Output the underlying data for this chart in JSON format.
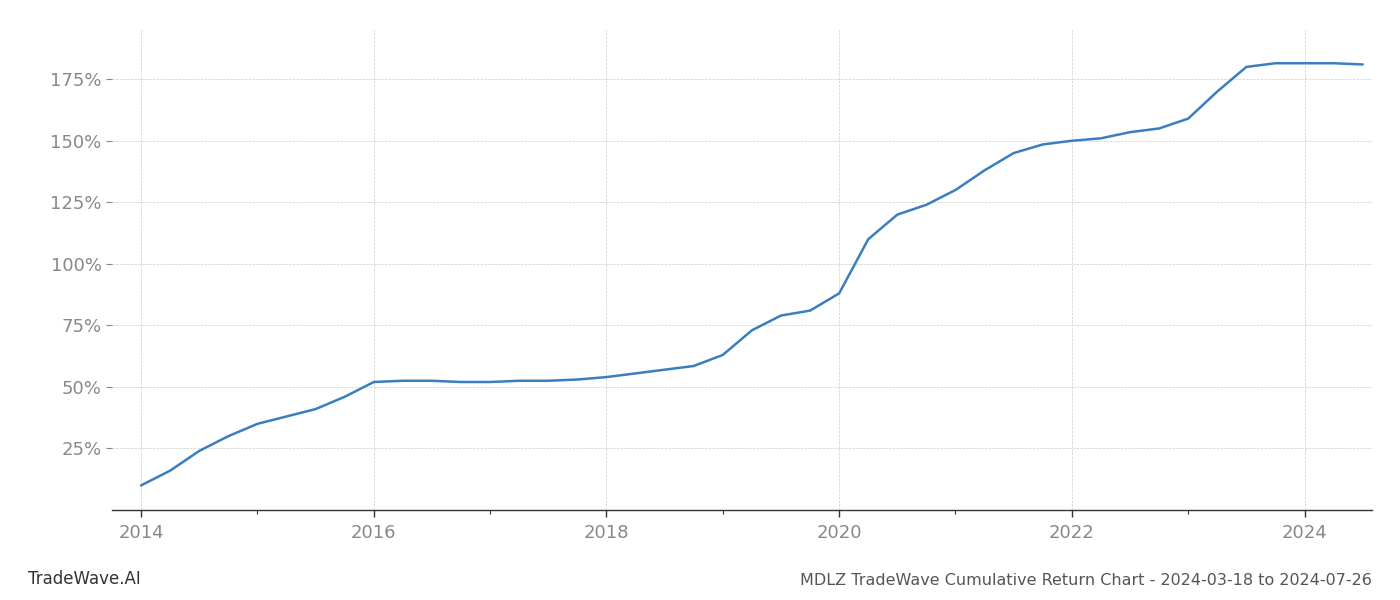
{
  "title": "MDLZ TradeWave Cumulative Return Chart - 2024-03-18 to 2024-07-26",
  "watermark": "TradeWave.AI",
  "line_color": "#3a7ebf",
  "line_width": 1.8,
  "background_color": "#ffffff",
  "grid_color": "#cccccc",
  "grid_linestyle": "--",
  "grid_linewidth": 0.5,
  "x_values": [
    2014.0,
    2014.25,
    2014.5,
    2014.75,
    2015.0,
    2015.25,
    2015.5,
    2015.75,
    2016.0,
    2016.25,
    2016.5,
    2016.75,
    2017.0,
    2017.25,
    2017.5,
    2017.75,
    2018.0,
    2018.25,
    2018.5,
    2018.75,
    2019.0,
    2019.25,
    2019.5,
    2019.75,
    2020.0,
    2020.25,
    2020.5,
    2020.75,
    2021.0,
    2021.25,
    2021.5,
    2021.75,
    2022.0,
    2022.25,
    2022.5,
    2022.75,
    2023.0,
    2023.25,
    2023.5,
    2023.75,
    2024.0,
    2024.25,
    2024.5
  ],
  "y_values": [
    10.0,
    16.0,
    24.0,
    30.0,
    35.0,
    38.0,
    41.0,
    46.0,
    52.0,
    52.5,
    52.5,
    52.0,
    52.0,
    52.5,
    52.5,
    53.0,
    54.0,
    55.5,
    57.0,
    58.5,
    63.0,
    73.0,
    79.0,
    81.0,
    88.0,
    110.0,
    120.0,
    124.0,
    130.0,
    138.0,
    145.0,
    148.5,
    150.0,
    151.0,
    153.5,
    155.0,
    159.0,
    170.0,
    180.0,
    181.5,
    181.5,
    181.5,
    181.0
  ],
  "yticks": [
    25,
    50,
    75,
    100,
    125,
    150,
    175
  ],
  "ytick_labels": [
    "25%",
    "50%",
    "75%",
    "100%",
    "125%",
    "150%",
    "175%"
  ],
  "xticks": [
    2014,
    2016,
    2018,
    2020,
    2022,
    2024
  ],
  "xtick_labels": [
    "2014",
    "2016",
    "2018",
    "2020",
    "2022",
    "2024"
  ],
  "ylim": [
    0,
    195
  ],
  "xlim": [
    2013.75,
    2024.58
  ],
  "tick_color": "#888888",
  "tick_fontsize": 13,
  "title_fontsize": 11.5,
  "watermark_fontsize": 12
}
